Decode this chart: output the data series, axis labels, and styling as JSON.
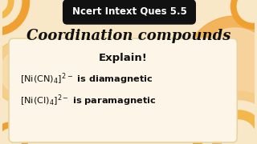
{
  "bg_color": "#f9e8c8",
  "title_badge_text": "Ncert Intext Ques 5.5",
  "title_badge_bg": "#111111",
  "title_badge_fg": "#ffffff",
  "heading": "Coordination compounds",
  "heading_color": "#111111",
  "box_bg": "#fdf6e8",
  "box_border": "#e8d4a0",
  "box_text_color": "#111111",
  "orange_color": "#f0a030",
  "orange_light": "#f5c060",
  "orange_dark": "#e08020",
  "swirl_color": "#f2b84b"
}
